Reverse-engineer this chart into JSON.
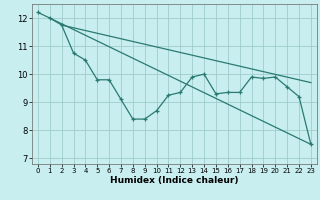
{
  "xlabel": "Humidex (Indice chaleur)",
  "bg_color": "#c8eef0",
  "grid_color": "#a0cccc",
  "line_color": "#2a7a70",
  "xlim": [
    -0.5,
    23.5
  ],
  "ylim": [
    6.8,
    12.5
  ],
  "yticks": [
    7,
    8,
    9,
    10,
    11,
    12
  ],
  "xticks": [
    0,
    1,
    2,
    3,
    4,
    5,
    6,
    7,
    8,
    9,
    10,
    11,
    12,
    13,
    14,
    15,
    16,
    17,
    18,
    19,
    20,
    21,
    22,
    23
  ],
  "line1_x": [
    0,
    1,
    2,
    3,
    4,
    5,
    6,
    7,
    8,
    9,
    10,
    11,
    12,
    13,
    14,
    15,
    16,
    17,
    18,
    19,
    20,
    21,
    22,
    23
  ],
  "line1_y": [
    12.2,
    12.0,
    11.75,
    10.75,
    10.5,
    9.8,
    9.8,
    9.1,
    8.4,
    8.4,
    8.7,
    9.25,
    9.35,
    9.9,
    10.0,
    9.3,
    9.35,
    9.35,
    9.9,
    9.85,
    9.9,
    9.55,
    9.2,
    7.5
  ],
  "line2_x": [
    1,
    23
  ],
  "line2_y": [
    12.0,
    7.5
  ],
  "line3_x": [
    2,
    23
  ],
  "line3_y": [
    11.75,
    9.7
  ]
}
